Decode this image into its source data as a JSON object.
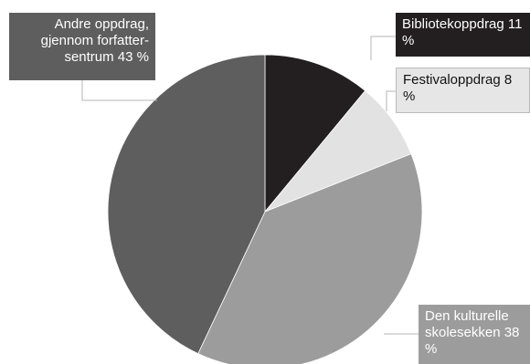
{
  "chart_data": {
    "type": "pie",
    "categories": [
      "Bibliotekoppdrag",
      "Festivaloppdrag",
      "Den kulturelle skolesekken",
      "Andre oppdrag, gjennom forfatter-sentrum"
    ],
    "values": [
      11,
      8,
      38,
      43
    ],
    "value_labels": [
      "11 %",
      "8 %",
      "38 %",
      "43 %"
    ],
    "colors": [
      "#231f20",
      "#e2e2e2",
      "#9c9c9c",
      "#5e5e5e"
    ]
  }
}
